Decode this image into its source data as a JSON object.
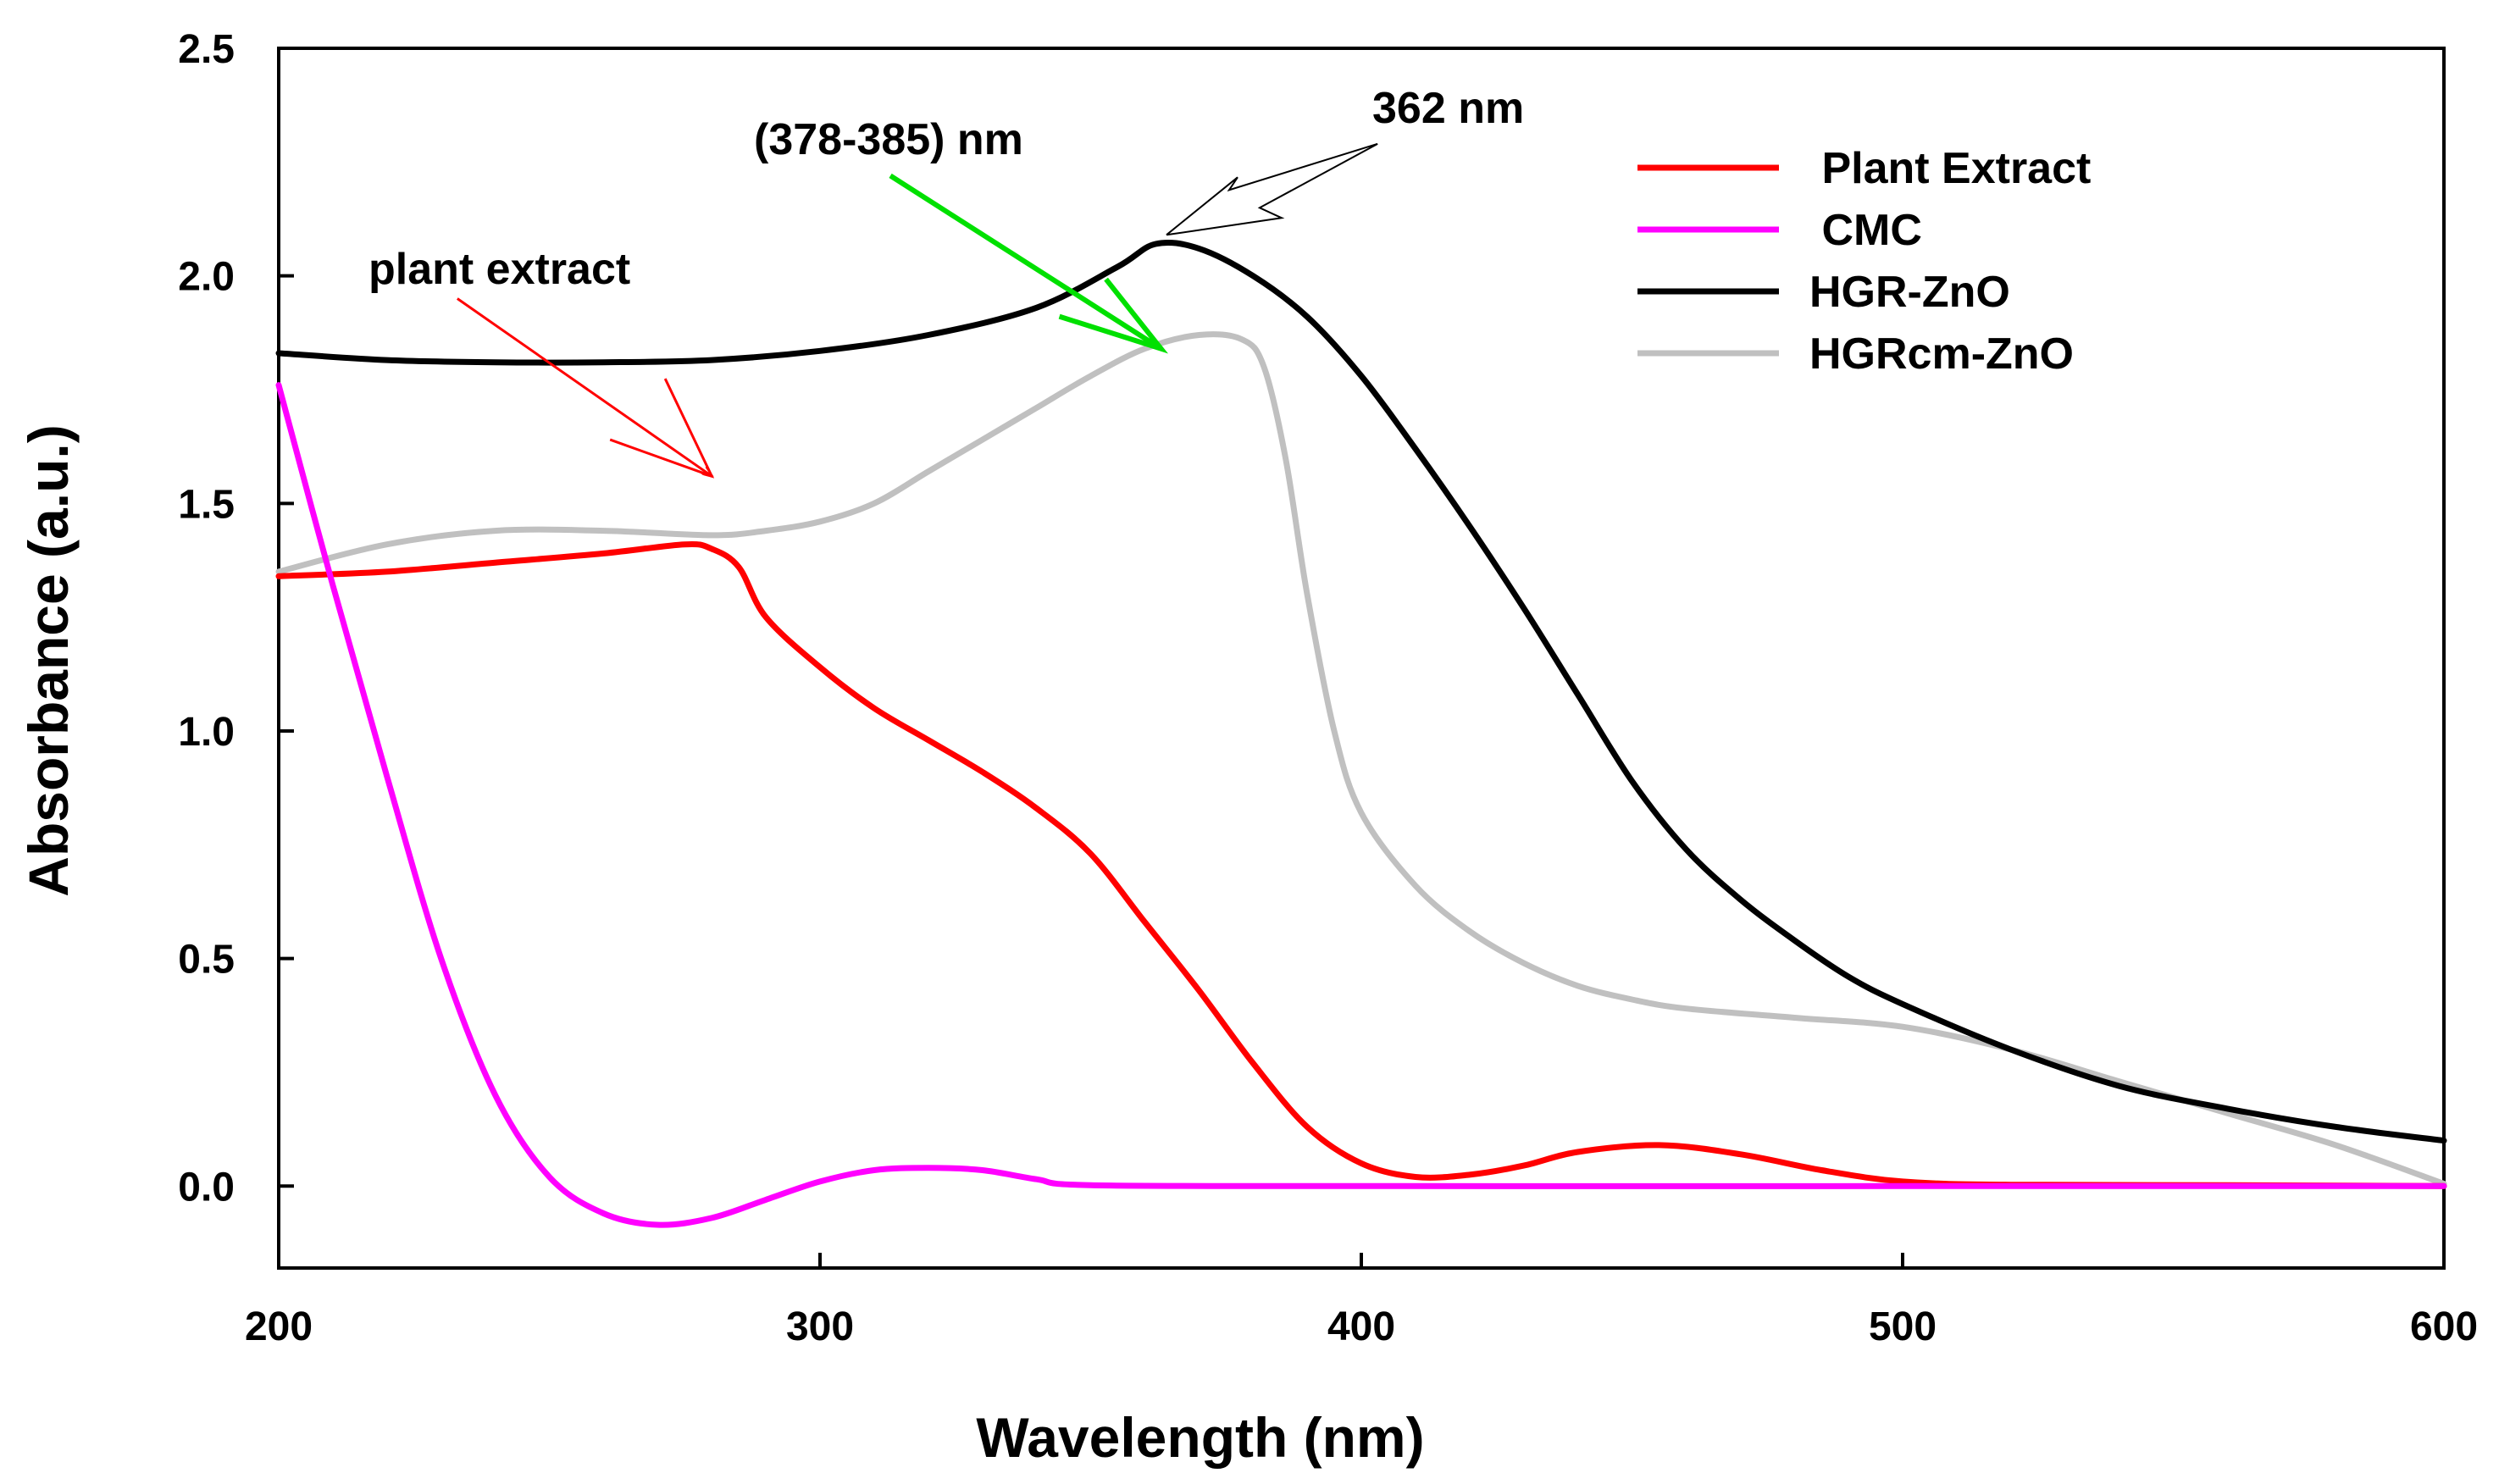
{
  "chart_data": {
    "type": "line",
    "title": "",
    "xlabel": "Wavelength (nm)",
    "ylabel": "Absorbance (a.u.)",
    "xlim": [
      200,
      600
    ],
    "ylim": [
      -0.18,
      2.5
    ],
    "xticks": [
      200,
      300,
      400,
      500,
      600
    ],
    "xtick_labels": [
      "200",
      "300",
      "400",
      "500",
      "600"
    ],
    "yticks": [
      0,
      0.5,
      1.0,
      1.5,
      2.0,
      2.5
    ],
    "ytick_labels": [
      "0.0",
      "0.5",
      "1.0",
      "1.5",
      "2.0",
      "2.5"
    ],
    "grid": false,
    "legend_position": "top-right",
    "series": [
      {
        "name": " Plant Extract",
        "color": "#ff0000",
        "points": [
          [
            200,
            1.34
          ],
          [
            220,
            1.35
          ],
          [
            240,
            1.37
          ],
          [
            260,
            1.39
          ],
          [
            275,
            1.41
          ],
          [
            280,
            1.4
          ],
          [
            285,
            1.36
          ],
          [
            290,
            1.25
          ],
          [
            300,
            1.14
          ],
          [
            310,
            1.05
          ],
          [
            320,
            0.98
          ],
          [
            330,
            0.91
          ],
          [
            340,
            0.83
          ],
          [
            350,
            0.73
          ],
          [
            360,
            0.58
          ],
          [
            370,
            0.43
          ],
          [
            380,
            0.27
          ],
          [
            390,
            0.13
          ],
          [
            400,
            0.05
          ],
          [
            410,
            0.02
          ],
          [
            420,
            0.025
          ],
          [
            430,
            0.045
          ],
          [
            440,
            0.075
          ],
          [
            455,
            0.09
          ],
          [
            470,
            0.07
          ],
          [
            485,
            0.035
          ],
          [
            500,
            0.01
          ],
          [
            520,
            0.003
          ],
          [
            560,
            0.002
          ],
          [
            600,
            0.0
          ]
        ]
      },
      {
        "name": " CMC",
        "color": "#ff00ff",
        "points": [
          [
            200,
            1.76
          ],
          [
            210,
            1.32
          ],
          [
            220,
            0.9
          ],
          [
            230,
            0.5
          ],
          [
            240,
            0.2
          ],
          [
            250,
            0.02
          ],
          [
            260,
            -0.06
          ],
          [
            270,
            -0.085
          ],
          [
            280,
            -0.07
          ],
          [
            290,
            -0.03
          ],
          [
            300,
            0.01
          ],
          [
            310,
            0.035
          ],
          [
            320,
            0.04
          ],
          [
            330,
            0.035
          ],
          [
            340,
            0.015
          ],
          [
            350,
            0.002
          ],
          [
            400,
            0.0
          ],
          [
            500,
            0.0
          ],
          [
            600,
            0.0
          ]
        ]
      },
      {
        "name": "HGR-ZnO",
        "color": "#000000",
        "points": [
          [
            200,
            1.83
          ],
          [
            220,
            1.815
          ],
          [
            240,
            1.81
          ],
          [
            260,
            1.81
          ],
          [
            280,
            1.815
          ],
          [
            300,
            1.835
          ],
          [
            320,
            1.87
          ],
          [
            340,
            1.93
          ],
          [
            355,
            2.02
          ],
          [
            362,
            2.07
          ],
          [
            370,
            2.06
          ],
          [
            380,
            2.0
          ],
          [
            390,
            1.91
          ],
          [
            400,
            1.78
          ],
          [
            410,
            1.62
          ],
          [
            420,
            1.45
          ],
          [
            430,
            1.27
          ],
          [
            440,
            1.08
          ],
          [
            450,
            0.89
          ],
          [
            460,
            0.74
          ],
          [
            470,
            0.63
          ],
          [
            480,
            0.54
          ],
          [
            490,
            0.46
          ],
          [
            500,
            0.4
          ],
          [
            520,
            0.3
          ],
          [
            540,
            0.22
          ],
          [
            560,
            0.17
          ],
          [
            580,
            0.13
          ],
          [
            600,
            0.1
          ]
        ]
      },
      {
        "name": "HGRcm-ZnO",
        "color": "#c0c0c0",
        "points": [
          [
            200,
            1.35
          ],
          [
            220,
            1.41
          ],
          [
            240,
            1.44
          ],
          [
            260,
            1.44
          ],
          [
            280,
            1.43
          ],
          [
            290,
            1.44
          ],
          [
            300,
            1.46
          ],
          [
            310,
            1.5
          ],
          [
            320,
            1.57
          ],
          [
            330,
            1.64
          ],
          [
            340,
            1.71
          ],
          [
            350,
            1.78
          ],
          [
            360,
            1.84
          ],
          [
            370,
            1.87
          ],
          [
            378,
            1.86
          ],
          [
            382,
            1.8
          ],
          [
            386,
            1.6
          ],
          [
            390,
            1.3
          ],
          [
            395,
            1.0
          ],
          [
            400,
            0.82
          ],
          [
            410,
            0.66
          ],
          [
            420,
            0.56
          ],
          [
            430,
            0.49
          ],
          [
            440,
            0.44
          ],
          [
            450,
            0.41
          ],
          [
            460,
            0.39
          ],
          [
            480,
            0.37
          ],
          [
            500,
            0.35
          ],
          [
            520,
            0.3
          ],
          [
            540,
            0.23
          ],
          [
            560,
            0.16
          ],
          [
            580,
            0.09
          ],
          [
            600,
            0.005
          ]
        ]
      }
    ],
    "annotations": [
      {
        "text": "plant extract",
        "color": "#ff0000",
        "arrow_from": [
          233,
          1.95
        ],
        "arrow_to": [
          280,
          1.56
        ]
      },
      {
        "text": "(378-385) nm",
        "color": "#00e000",
        "arrow_from": [
          313,
          2.22
        ],
        "arrow_to": [
          363,
          1.84
        ]
      },
      {
        "text": "362 nm",
        "color": "#000000",
        "arrow_from": [
          403,
          2.29
        ],
        "arrow_to": [
          364,
          2.09
        ]
      }
    ]
  }
}
